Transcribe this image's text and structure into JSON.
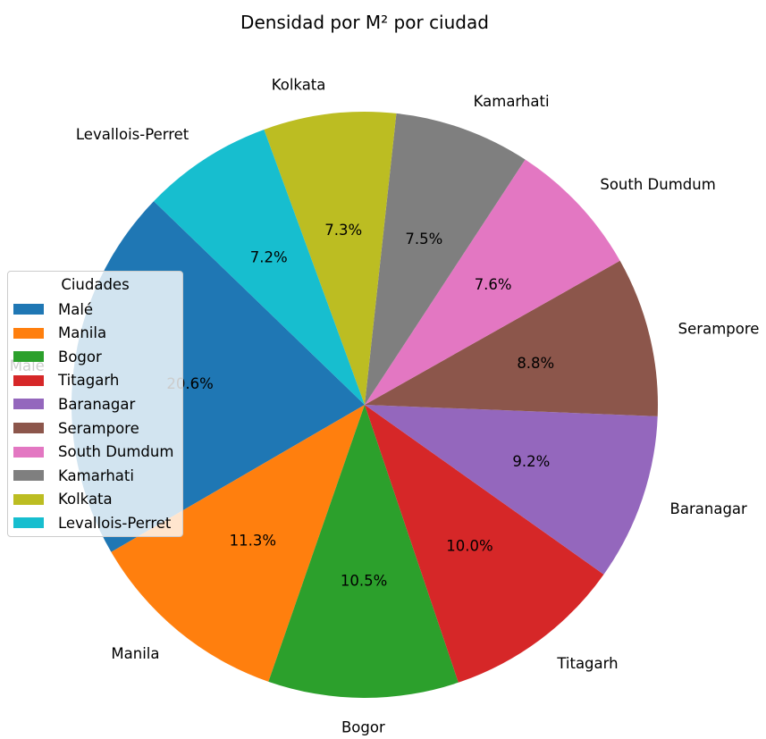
{
  "chart_data": {
    "type": "pie",
    "title": "Densidad por M² por ciudad",
    "categories": [
      "Malé",
      "Manila",
      "Bogor",
      "Titagarh",
      "Baranagar",
      "Serampore",
      "South Dumdum",
      "Kamarhati",
      "Kolkata",
      "Levallois-Perret"
    ],
    "values": [
      20.6,
      11.3,
      10.5,
      10.0,
      9.2,
      8.8,
      7.6,
      7.5,
      7.3,
      7.2
    ],
    "pct_labels": [
      "20.6%",
      "11.3%",
      "10.5%",
      "10.0%",
      "9.2%",
      "8.8%",
      "7.6%",
      "7.5%",
      "7.3%",
      "7.2%"
    ],
    "colors": [
      "#1f77b4",
      "#ff7f0e",
      "#2ca02c",
      "#d62728",
      "#9467bd",
      "#8c564b",
      "#e377c2",
      "#7f7f7f",
      "#bcbd22",
      "#17becf"
    ],
    "legend": {
      "title": "Ciudades",
      "placement": "center-left"
    }
  }
}
